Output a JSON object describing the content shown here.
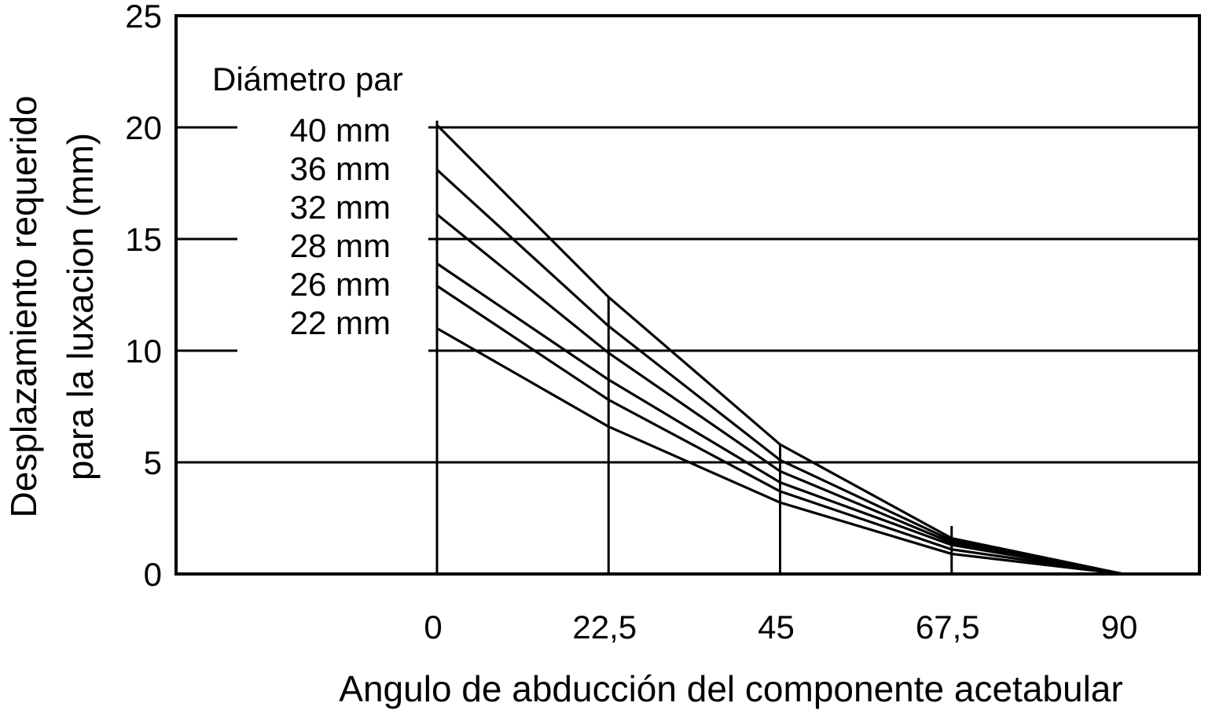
{
  "chart_data": {
    "type": "line",
    "title": "",
    "xlabel": "Angulo de abducción del componente acetabular",
    "ylabel_line1": "Desplazamiento requerido",
    "ylabel_line2": "para la luxacion (mm)",
    "legend_title": "Diámetro par",
    "x": [
      0,
      22.5,
      45,
      67.5,
      90
    ],
    "x_tick_labels": [
      "0",
      "22,5",
      "45",
      "67,5",
      "90"
    ],
    "y_ticks": [
      0,
      5,
      10,
      15,
      20,
      25
    ],
    "y_tick_labels": [
      "0",
      "5",
      "10",
      "15",
      "20",
      "25"
    ],
    "ylim": [
      0,
      25
    ],
    "grid": "horizontal",
    "legend_position": "top-left",
    "series": [
      {
        "name": "40 mm",
        "values": [
          20.1,
          12.4,
          5.8,
          1.6,
          0
        ]
      },
      {
        "name": "36 mm",
        "values": [
          18.1,
          11.1,
          5.1,
          1.5,
          0
        ]
      },
      {
        "name": "32 mm",
        "values": [
          16.1,
          9.9,
          4.6,
          1.4,
          0
        ]
      },
      {
        "name": "28 mm",
        "values": [
          13.9,
          8.7,
          4.1,
          1.3,
          0
        ]
      },
      {
        "name": "26 mm",
        "values": [
          12.9,
          7.8,
          3.7,
          1.1,
          0
        ]
      },
      {
        "name": "22 mm",
        "values": [
          11.0,
          6.6,
          3.2,
          0.9,
          0
        ]
      }
    ]
  }
}
